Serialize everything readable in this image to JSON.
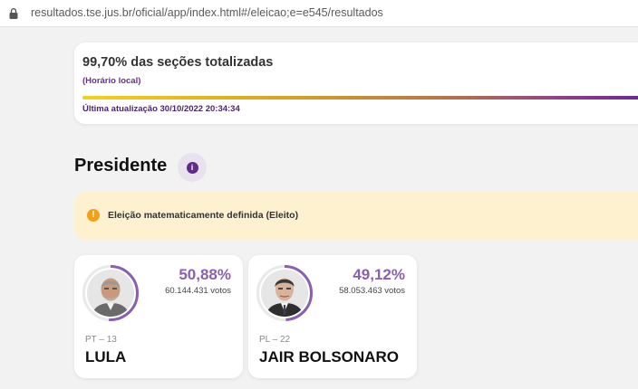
{
  "browser": {
    "url": "resultados.tse.jus.br/oficial/app/index.html#/eleicao;e=e545/resultados"
  },
  "progress": {
    "totalized": "99,70% das seções totalizadas",
    "local_time": "(Horário local)",
    "fraction": 0.997,
    "last_update": "Última atualização 30/10/2022 20:34:34"
  },
  "section": {
    "title": "Presidente",
    "info_icon": "info-icon"
  },
  "alert": {
    "icon": "warning-icon",
    "text": "Eleição matematicamente definida (Eleito)"
  },
  "candidates": [
    {
      "percent": "50,88%",
      "share": 0.5088,
      "votes": "60.144.431 votos",
      "party": "PT – 13",
      "name": "LULA"
    },
    {
      "percent": "49,12%",
      "share": 0.4912,
      "votes": "58.053.463 votos",
      "party": "PL – 22",
      "name": "JAIR BOLSONARO"
    }
  ],
  "colors": {
    "accent_purple": "#6b2d8f",
    "ring_purple": "#8a5fb0",
    "alert_bg": "#fdf1d0",
    "warning_orange": "#f0a11a"
  }
}
